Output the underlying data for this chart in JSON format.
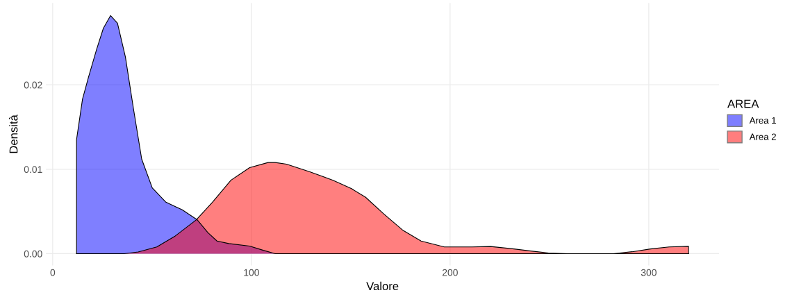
{
  "chart_data": {
    "type": "area",
    "xlabel": "Valore",
    "ylabel": "Densità",
    "legend_title": "AREA",
    "legend": "right",
    "grid": true,
    "xlim": [
      -3.4,
      335.4
    ],
    "ylim": [
      -0.0014,
      0.0297
    ],
    "xticks": [
      0,
      100,
      200,
      300
    ],
    "yticks": [
      {
        "value": 0,
        "label": "0.00"
      },
      {
        "value": 0.01,
        "label": "0.01"
      },
      {
        "value": 0.02,
        "label": "0.02"
      }
    ],
    "series": [
      {
        "name": "Area 1",
        "color": "#0000ff",
        "x": [
          12,
          12,
          15,
          18,
          22.1,
          25.5,
          29.1,
          32.6,
          36.6,
          40.7,
          44.8,
          50.1,
          57,
          65.2,
          72.8,
          78.1,
          82.7,
          88.6,
          99.1,
          106,
          112,
          130,
          320
        ],
        "values": [
          0,
          0.0135,
          0.0183,
          0.0209,
          0.0242,
          0.0267,
          0.0282,
          0.0273,
          0.0233,
          0.0171,
          0.0112,
          0.0078,
          0.0061,
          0.0052,
          0.004,
          0.0025,
          0.0015,
          0.0012,
          0.0009,
          0.0004,
          0,
          0,
          0
        ]
      },
      {
        "name": "Area 2",
        "color": "#ff0000",
        "x": [
          12,
          36,
          43,
          52.4,
          61.7,
          72.2,
          80.4,
          89.7,
          99.1,
          108.4,
          112,
          117.7,
          129.4,
          141.1,
          150.4,
          157.4,
          166.7,
          176.1,
          185.4,
          197.1,
          211.1,
          220.4,
          232.1,
          243.7,
          249.6,
          259,
          282.2,
          291.6,
          300.9,
          310.2,
          320,
          320
        ],
        "values": [
          0,
          0,
          0.0002,
          0.0008,
          0.0021,
          0.004,
          0.0061,
          0.0087,
          0.0102,
          0.0108,
          0.0108,
          0.0106,
          0.0097,
          0.0087,
          0.0077,
          0.0067,
          0.0047,
          0.0028,
          0.0015,
          0.0008,
          0.0008,
          0.00085,
          0.00056,
          0.00023,
          8e-05,
          0,
          0,
          0.00023,
          0.00056,
          0.0008,
          0.00087,
          0
        ]
      }
    ]
  }
}
